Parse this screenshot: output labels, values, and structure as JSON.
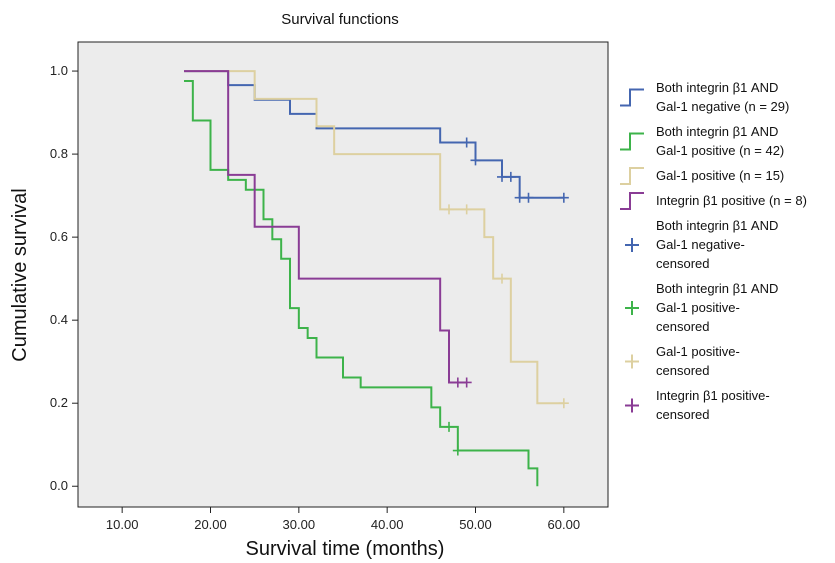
{
  "chart_data": {
    "type": "line",
    "title": "Survival functions",
    "xlabel": "Survival time (months)",
    "ylabel": "Cumulative survival",
    "xlim": [
      5,
      65
    ],
    "ylim": [
      -0.05,
      1.07
    ],
    "x_ticks": [
      10,
      20,
      30,
      40,
      50,
      60
    ],
    "x_tick_labels": [
      "10.00",
      "20.00",
      "30.00",
      "40.00",
      "50.00",
      "60.00"
    ],
    "y_ticks": [
      0.0,
      0.2,
      0.4,
      0.6,
      0.8,
      1.0
    ],
    "y_tick_labels": [
      "0.0",
      "0.2",
      "0.4",
      "0.6",
      "0.8",
      "1.0"
    ],
    "grid": false,
    "legend_position": "right",
    "series": [
      {
        "name": "Both integrin β1 AND Gal-1 negative (n = 29)",
        "legend_lines": [
          "Both integrin β1 AND",
          "Gal-1 negative (n = 29)"
        ],
        "color": "#4466b0",
        "x": [
          17,
          22,
          25,
          29,
          32,
          46,
          50,
          53,
          55,
          60
        ],
        "y": [
          1.0,
          0.966,
          0.931,
          0.897,
          0.862,
          0.828,
          0.785,
          0.745,
          0.695,
          0.695
        ]
      },
      {
        "name": "Both integrin β1 AND Gal-1 positive (n = 42)",
        "legend_lines": [
          "Both integrin β1 AND",
          "Gal-1 positive (n = 42)"
        ],
        "color": "#3db34a",
        "x": [
          17,
          18,
          20,
          22,
          24,
          26,
          27,
          28,
          29,
          30,
          31,
          32,
          35,
          37,
          45,
          46,
          48,
          56,
          57
        ],
        "y": [
          0.976,
          0.881,
          0.762,
          0.738,
          0.714,
          0.643,
          0.595,
          0.548,
          0.429,
          0.381,
          0.357,
          0.31,
          0.262,
          0.238,
          0.19,
          0.143,
          0.086,
          0.043,
          0.0
        ]
      },
      {
        "name": "Gal-1 positive (n = 15)",
        "legend_lines": [
          "Gal-1 positive (n = 15)"
        ],
        "color": "#ddd0a0",
        "x": [
          17,
          25,
          32,
          34,
          46,
          51,
          52,
          54,
          57,
          60
        ],
        "y": [
          1.0,
          0.933,
          0.867,
          0.8,
          0.667,
          0.6,
          0.5,
          0.3,
          0.2,
          0.2
        ]
      },
      {
        "name": "Integrin β1 positive (n = 8)",
        "legend_lines": [
          "Integrin β1 positive (n = 8)"
        ],
        "color": "#8a3c95",
        "x": [
          17,
          22,
          25,
          30,
          46,
          47,
          49
        ],
        "y": [
          1.0,
          0.75,
          0.625,
          0.5,
          0.375,
          0.25,
          0.25
        ]
      }
    ],
    "censored": [
      {
        "name": "Both integrin β1 AND Gal-1 negative-censored",
        "legend_lines": [
          "Both integrin β1 AND",
          "Gal-1 negative-",
          "censored"
        ],
        "color": "#4466b0",
        "x": [
          49,
          50,
          53,
          54,
          55,
          56,
          60
        ],
        "y": [
          0.828,
          0.785,
          0.745,
          0.745,
          0.695,
          0.695,
          0.695
        ]
      },
      {
        "name": "Both integrin β1 AND Gal-1 positive-censored",
        "legend_lines": [
          "Both integrin β1 AND",
          "Gal-1 positive-",
          "censored"
        ],
        "color": "#3db34a",
        "x": [
          47,
          48
        ],
        "y": [
          0.143,
          0.086
        ]
      },
      {
        "name": "Gal-1 positive-censored",
        "legend_lines": [
          "Gal-1 positive-",
          "censored"
        ],
        "color": "#ddd0a0",
        "x": [
          47,
          49,
          53,
          60
        ],
        "y": [
          0.667,
          0.667,
          0.5,
          0.2
        ]
      },
      {
        "name": "Integrin β1 positive-censored",
        "legend_lines": [
          "Integrin β1 positive-",
          "censored"
        ],
        "color": "#8a3c95",
        "x": [
          48,
          49
        ],
        "y": [
          0.25,
          0.25
        ]
      }
    ]
  }
}
